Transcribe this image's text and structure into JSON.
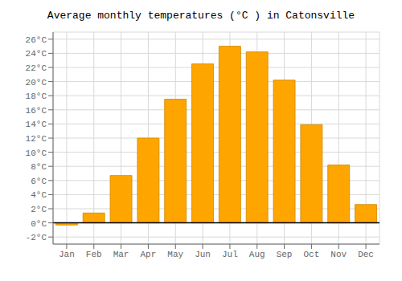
{
  "chart_data": {
    "type": "bar",
    "title": "Average monthly temperatures (°C ) in Catonsville",
    "categories": [
      "Jan",
      "Feb",
      "Mar",
      "Apr",
      "May",
      "Jun",
      "Jul",
      "Aug",
      "Sep",
      "Oct",
      "Nov",
      "Dec"
    ],
    "values": [
      -0.3,
      1.4,
      6.7,
      12.0,
      17.5,
      22.5,
      25.0,
      24.2,
      20.2,
      13.9,
      8.2,
      2.6
    ],
    "color": "#FFA500",
    "ylim": [
      -3,
      27
    ],
    "yticks": [
      {
        "value": -2,
        "label": "-2°C"
      },
      {
        "value": 0,
        "label": "0°C"
      },
      {
        "value": 2,
        "label": "2°C"
      },
      {
        "value": 4,
        "label": "4°C"
      },
      {
        "value": 6,
        "label": "6°C"
      },
      {
        "value": 8,
        "label": "8°C"
      },
      {
        "value": 10,
        "label": "10°C"
      },
      {
        "value": 12,
        "label": "12°C"
      },
      {
        "value": 14,
        "label": "14°C"
      },
      {
        "value": 16,
        "label": "16°C"
      },
      {
        "value": 18,
        "label": "18°C"
      },
      {
        "value": 20,
        "label": "20°C"
      },
      {
        "value": 22,
        "label": "22°C"
      },
      {
        "value": 24,
        "label": "24°C"
      },
      {
        "value": 26,
        "label": "26°C"
      }
    ],
    "grid": true
  }
}
